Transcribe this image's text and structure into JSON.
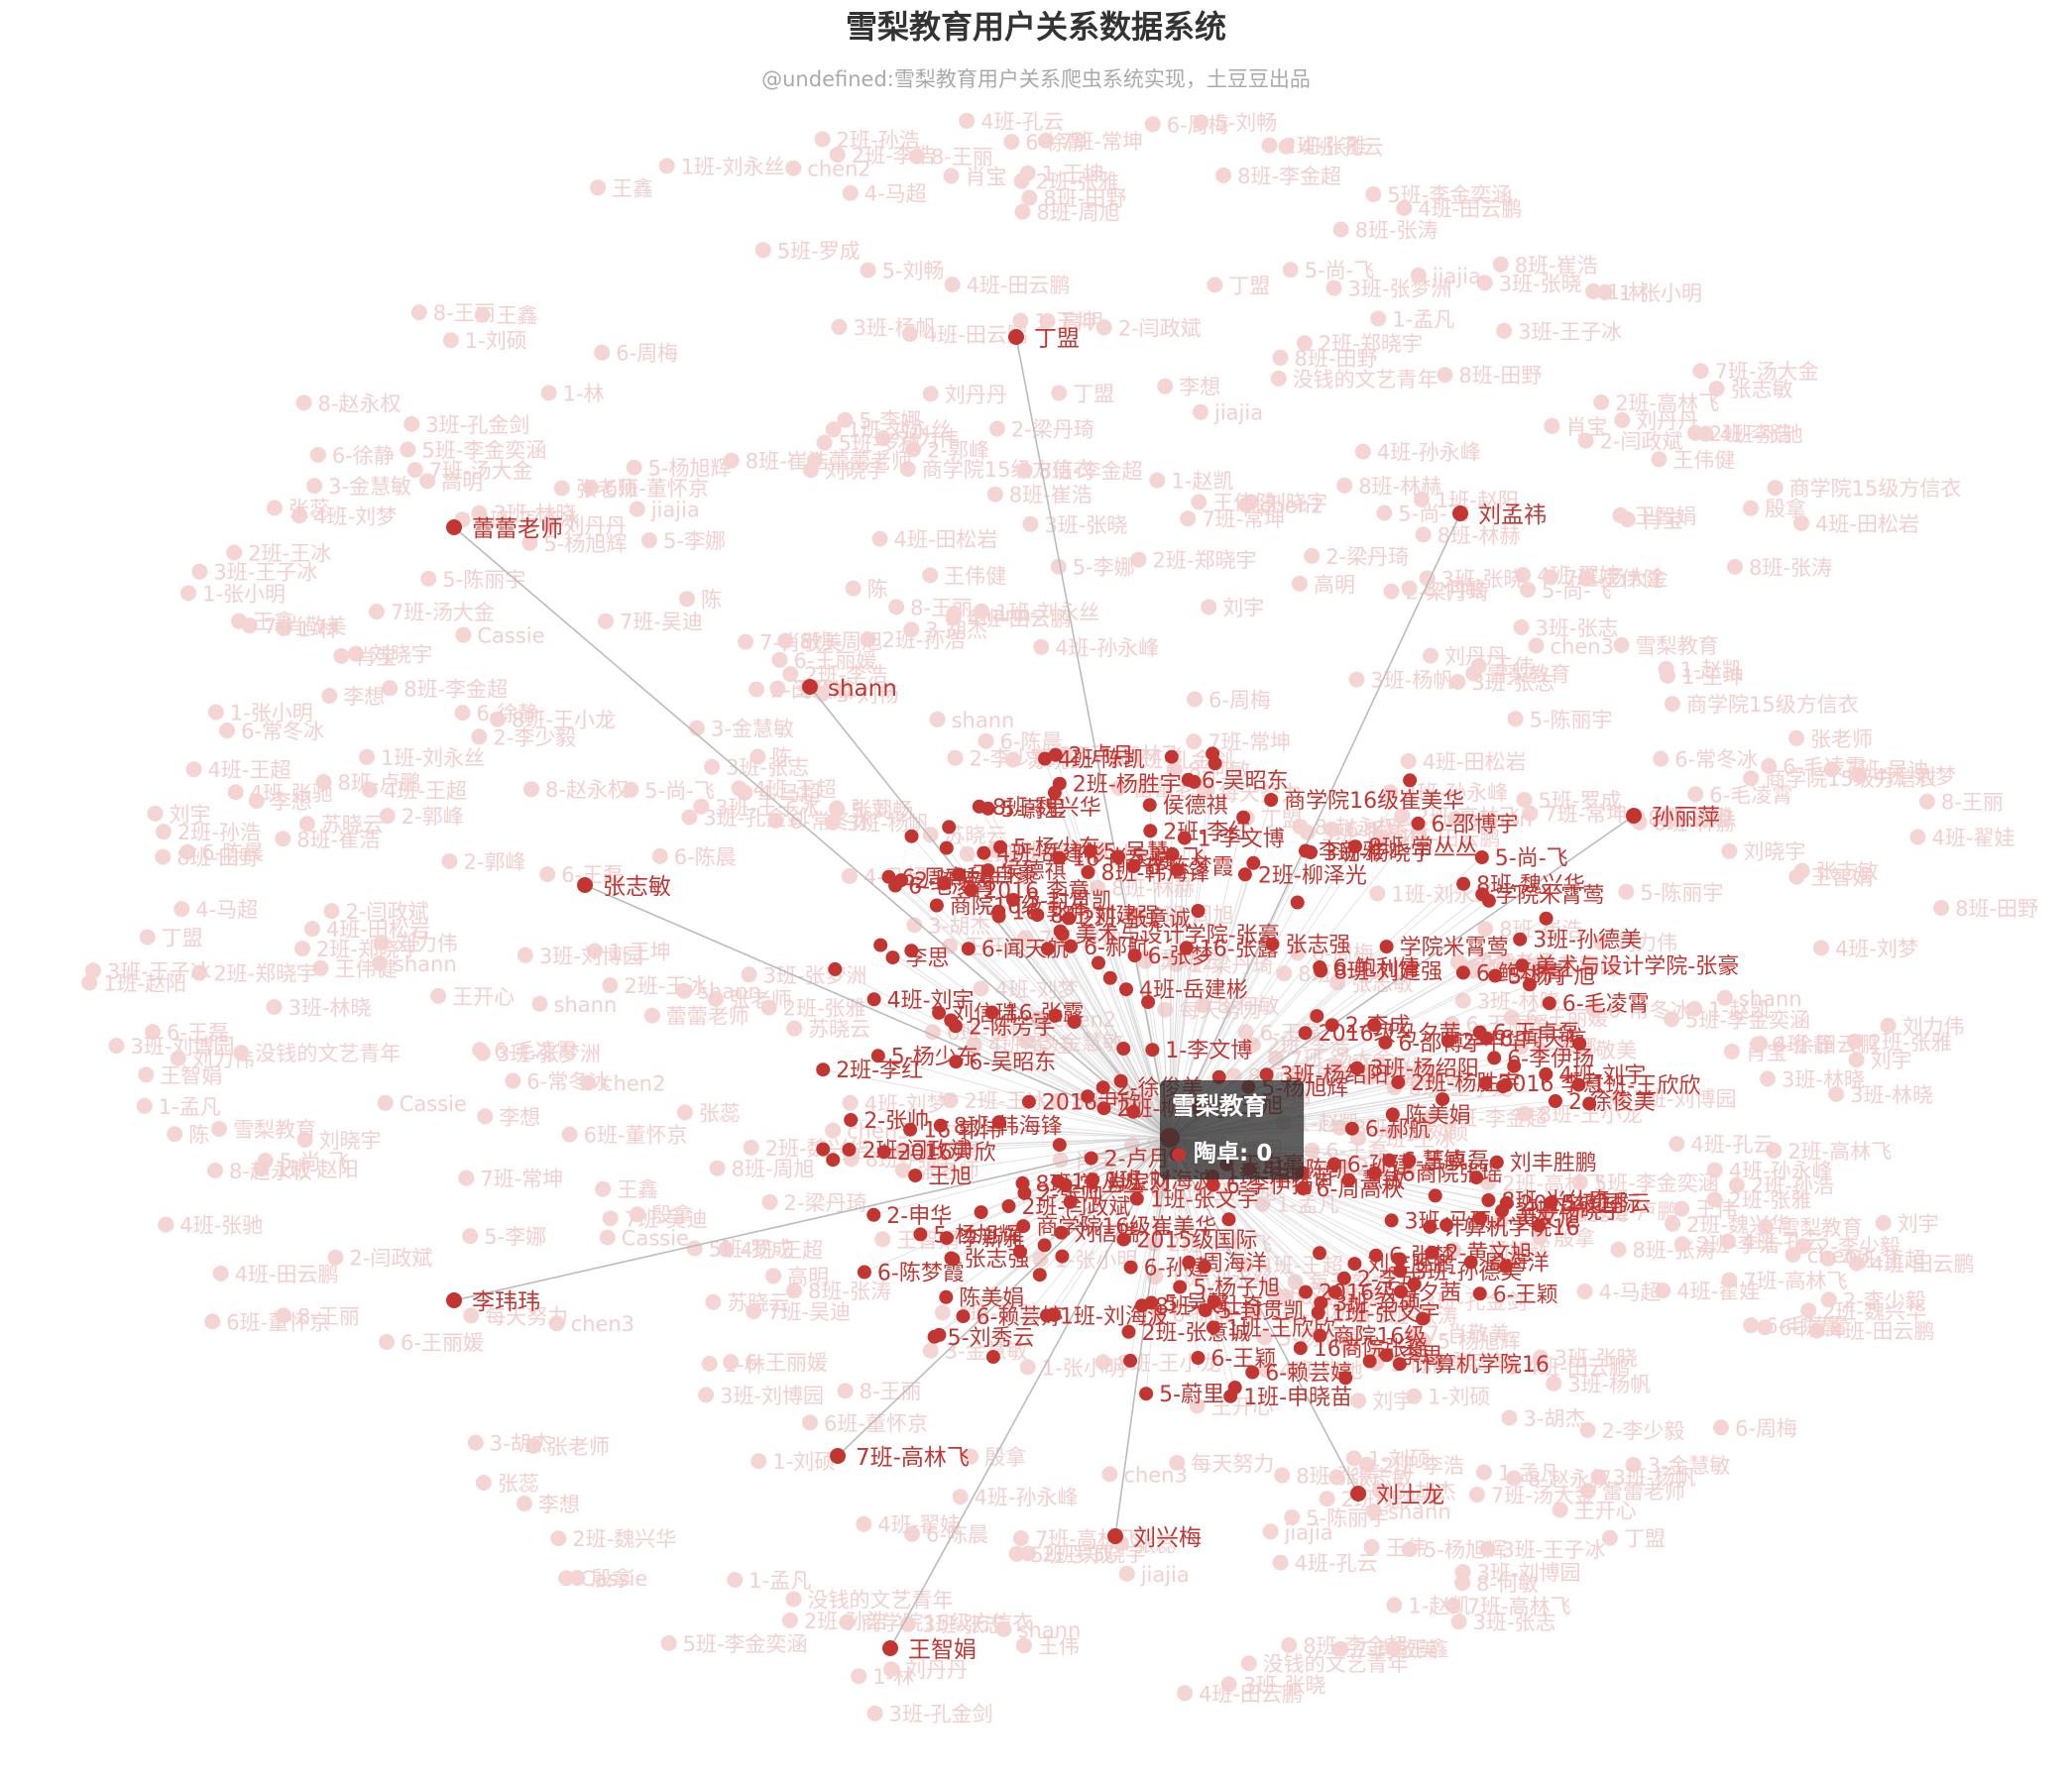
{
  "header": {
    "title": "雪梨教育用户关系数据系统",
    "subtitle": "@undefined:雪梨教育用户关系爬虫系统实现，土豆豆出品"
  },
  "tooltip": {
    "name": "雪梨教育",
    "series": "陶卓",
    "value": "0",
    "row": "陶卓: 0"
  },
  "colors": {
    "node": "#c23531",
    "faded_node": "#f4d5d4",
    "edge": "#cccccc",
    "label": "#c23531",
    "faded_label": "#f3cfce"
  },
  "graph": {
    "center_label": "雪梨教育",
    "featured_nodes": [
      "丁盟",
      "蕾蕾老师",
      "刘孟祎",
      "shann",
      "孙丽萍",
      "张志敏",
      "李玮玮",
      "7班-高林飞",
      "刘兴梅",
      "刘士龙",
      "王智娟"
    ],
    "inner_nodes": [
      "1班-刘海波",
      "2016级马夕茜",
      "5-蔚里",
      "5-尚-飞",
      "1班-申晓苗",
      "4班-刘宇",
      "学院米霄莺",
      "3班-马硕",
      "6-陈梦霞",
      "4班-岳建彬",
      "6-闻天航",
      "5-封贯凯",
      "1班-张文宇",
      "慧敏",
      "8班-刘建强",
      "8班-常丛丛",
      "2-张帅",
      "李新雅",
      "2-李成",
      "8班-魏兴华",
      "张志强",
      "6-赖芸婷",
      "计算机学院16",
      "王自豪",
      "侯德祺",
      "8班-米仕奇",
      "16-张露",
      "陈美娟",
      "2班-张意诚",
      "8班-韩海锋",
      "6-周高秋",
      "周海洋",
      "2016 李意",
      "5-刘秀云",
      "2015级国际",
      "16商院张瑶",
      "6-李伊扬",
      "美术与设计学院-张豪",
      "2-徐俊美",
      "2班-杨胜宇",
      "16 肖宝财",
      "6-邵博宇",
      "1班-王欣欣",
      "5-杨少东",
      "6-吴昭东",
      "商院16级",
      "3班-杨绍阳",
      "16 郭伟",
      "2班-柳泽光",
      "6-王卓磊",
      "2016尹欣",
      "2-黄文旭",
      "2班-闫政斌",
      "1-李文博",
      "刘信瑞",
      "王旭",
      "3班-孙德美",
      "2-申华",
      "李思",
      "6-郝航",
      "刘丰胜鹏",
      "2-陈芳宇",
      "2班-李红",
      "商学院16级崔美华",
      "4班-陈凯",
      "5-杨旭辉",
      "2-卢月",
      "5-吴慧",
      "6-王颖",
      "6-张梦",
      "5-杨子旭",
      "6-毛凌霄",
      "6-孙建",
      "6-鲍利倩",
      "3班-杨晓宇"
    ],
    "background_nodes": [
      "5-杨旭辉",
      "3班-林晓",
      "1-林",
      "6-王丽媛",
      "shann",
      "肖宝",
      "8班-张涛",
      "4班-田云鹏",
      "1班-刘永丝",
      "王伟健",
      "4班-王超",
      "5班-李金奕涵",
      "2班-李浩",
      "1-赵凯",
      "7班-汤大金",
      "8-王丽",
      "2班-张雅",
      "3班-刘博园",
      "3班-王子冰",
      "苏晓云",
      "刘力伟",
      "王开心",
      "7-肖敬美",
      "丁盟",
      "陈",
      "6-常冬冰",
      "张老师",
      "chen2",
      "王智娟",
      "4班-孙永峰",
      "8班-卢鹏",
      "1-张小明",
      "4班-刘梦",
      "8班-林赫",
      "6-周梅",
      "3班-张志",
      "4班-张驰",
      "8班-田野",
      "2班-王冰",
      "4班-翟娃",
      "刘晓宇",
      "8班-崔浩",
      "5-尚-飞",
      "殷拿",
      "没钱的文艺青年",
      "4班-田松岩",
      "8班-李金超",
      "2班-高林飞",
      "6班-董怀京",
      "3班-张梦洲",
      "3班-孔金剑",
      "1-王坤",
      "2-闫政斌",
      "7班-常坤",
      "chen3",
      "商学院15级方信衣",
      "8-赵永权",
      "4班-田云鹏",
      "2班-魏兴华",
      "雪梨教育",
      "shann",
      "Cassie",
      "4班-孔云",
      "2班-郑晓宇",
      "3-金慧敏",
      "2-梁丹琦",
      "刘丹丹",
      "张志敏",
      "王伟",
      "5-陈丽宇",
      "蕾蕾老师",
      "每天努力",
      "jiajia",
      "6-毛凌霄",
      "2-李少毅",
      "8班-王小龙",
      "7班-高林飞",
      "3班-张晓",
      "1-刘硕",
      "5-李娜",
      "6-王磊",
      "刘宇",
      "张蕊",
      "高明",
      "李想",
      "王鑫",
      "8班-周旭",
      "2班-孙浩",
      "5-刘畅",
      "3班-杨帆",
      "6-陈晨",
      "1班-赵阳",
      "4-马超",
      "7班-吴迪",
      "6-徐静",
      "2-郭峰",
      "8-何敏",
      "3-胡杰",
      "5班-罗成",
      "1-孟凡"
    ]
  }
}
